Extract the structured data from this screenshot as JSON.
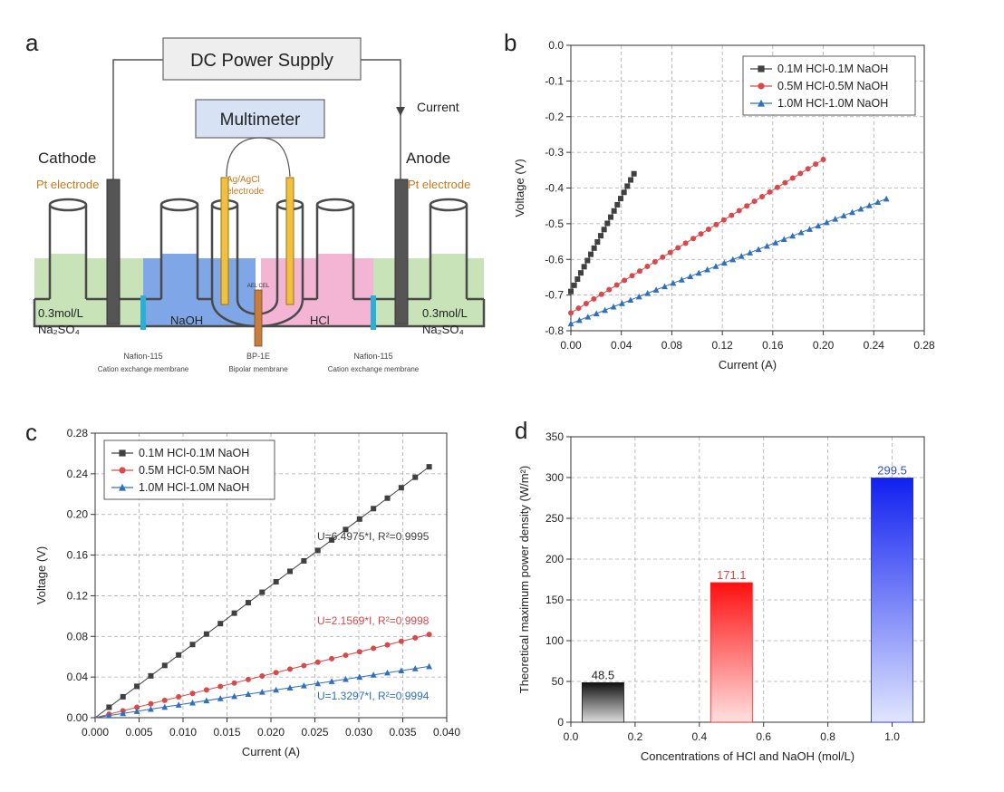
{
  "panels": {
    "a": {
      "label": "a",
      "power_supply": "DC Power Supply",
      "multimeter": "Multimeter",
      "current_label": "Current",
      "cathode": "Cathode",
      "anode": "Anode",
      "pt_left": "Pt electrode",
      "pt_right": "Pt electrode",
      "ref_electrode_1": "Ag/AgCl",
      "ref_electrode_2": "electrode",
      "small_label": "AEL CEL",
      "left_solution_1": "0.3mol/L",
      "left_solution_2": "Na₂SO₄",
      "right_solution_1": "0.3mol/L",
      "right_solution_2": "Na₂SO₄",
      "naoh": "NaOH",
      "hcl": "HCl",
      "membrane_left_1": "Nafion-115",
      "membrane_left_2": "Cation exchange membrane",
      "membrane_mid_1": "BP-1E",
      "membrane_mid_2": "Bipolar membrane",
      "membrane_right_1": "Nafion-115",
      "membrane_right_2": "Cation exchange membrane",
      "colors": {
        "na2so4": "#c9e3b8",
        "naoh": "#7fa6e6",
        "hcl": "#f4b5d4",
        "cem": "#2ab0d8",
        "bpm": "#c87d3e",
        "frame": "#4a4a4a"
      }
    },
    "b": {
      "label": "b"
    },
    "c": {
      "label": "c"
    },
    "d": {
      "label": "d"
    }
  },
  "chart_data": [
    {
      "id": "b",
      "type": "scatter",
      "xlabel": "Current (A)",
      "ylabel": "Voltage (V)",
      "xlim": [
        0,
        0.28
      ],
      "ylim": [
        -0.8,
        0.0
      ],
      "xticks": [
        "0.00",
        "0.04",
        "0.08",
        "0.12",
        "0.16",
        "0.20",
        "0.24",
        "0.28"
      ],
      "yticks": [
        "-0.8",
        "-0.7",
        "-0.6",
        "-0.5",
        "-0.4",
        "-0.3",
        "-0.2",
        "-0.1",
        "0.0"
      ],
      "grid": true,
      "legend": "top-right",
      "series": [
        {
          "name": "0.1M HCl-0.1M NaOH",
          "color": "#404040",
          "marker": "square",
          "x0": 0,
          "x1": 0.05,
          "y0": -0.69,
          "y1": -0.36,
          "n": 20
        },
        {
          "name": "0.5M HCl-0.5M NaOH",
          "color": "#d9484a",
          "marker": "circle",
          "x0": 0,
          "x1": 0.2,
          "y0": -0.75,
          "y1": -0.32,
          "n": 34
        },
        {
          "name": "1.0M HCl-1.0M NaOH",
          "color": "#2f6fc0",
          "marker": "triangle",
          "x0": 0,
          "x1": 0.25,
          "y0": -0.78,
          "y1": -0.43,
          "n": 38
        }
      ]
    },
    {
      "id": "c",
      "type": "scatter",
      "xlabel": "Current (A)",
      "ylabel": "Voltage (V)",
      "xlim": [
        0,
        0.04
      ],
      "ylim": [
        0,
        0.28
      ],
      "xticks": [
        "0.000",
        "0.005",
        "0.010",
        "0.015",
        "0.020",
        "0.025",
        "0.030",
        "0.035",
        "0.040"
      ],
      "yticks": [
        "0.00",
        "0.04",
        "0.08",
        "0.12",
        "0.16",
        "0.20",
        "0.24",
        "0.28"
      ],
      "grid": true,
      "legend": "top-left",
      "series": [
        {
          "name": "0.1M HCl-0.1M NaOH",
          "color": "#404040",
          "marker": "square",
          "slope": 6.4975,
          "x1": 0.038,
          "n": 24,
          "fit": "U=6.4975*I, R²=0.9995"
        },
        {
          "name": "0.5M HCl-0.5M NaOH",
          "color": "#d9484a",
          "marker": "circle",
          "slope": 2.1569,
          "x1": 0.038,
          "n": 24,
          "fit": "U=2.1569*I, R²=0.9998"
        },
        {
          "name": "1.0M HCl-1.0M NaOH",
          "color": "#2f6fc0",
          "marker": "triangle",
          "slope": 1.3297,
          "x1": 0.038,
          "n": 24,
          "fit": "U=1.3297*I, R²=0.9994"
        }
      ]
    },
    {
      "id": "d",
      "type": "bar",
      "xlabel": "Concentrations of HCl and NaOH (mol/L)",
      "ylabel": "Theoretical maximum power density (W/m²)",
      "xlim": [
        0,
        1.1
      ],
      "ylim": [
        0,
        350
      ],
      "xticks": [
        "0.0",
        "0.2",
        "0.4",
        "0.6",
        "0.8",
        "1.0"
      ],
      "yticks": [
        "0",
        "50",
        "100",
        "150",
        "200",
        "250",
        "300",
        "350"
      ],
      "grid": true,
      "bars": [
        {
          "x": 0.1,
          "value": 48.5,
          "label": "48.5",
          "color": "#1a1a1a",
          "label_color": "#222222"
        },
        {
          "x": 0.5,
          "value": 171.1,
          "label": "171.1",
          "color": "#ff1a1a",
          "label_color": "#d9484a"
        },
        {
          "x": 1.0,
          "value": 299.5,
          "label": "299.5",
          "color": "#1a2cf0",
          "label_color": "#2f4fc0"
        }
      ]
    }
  ]
}
